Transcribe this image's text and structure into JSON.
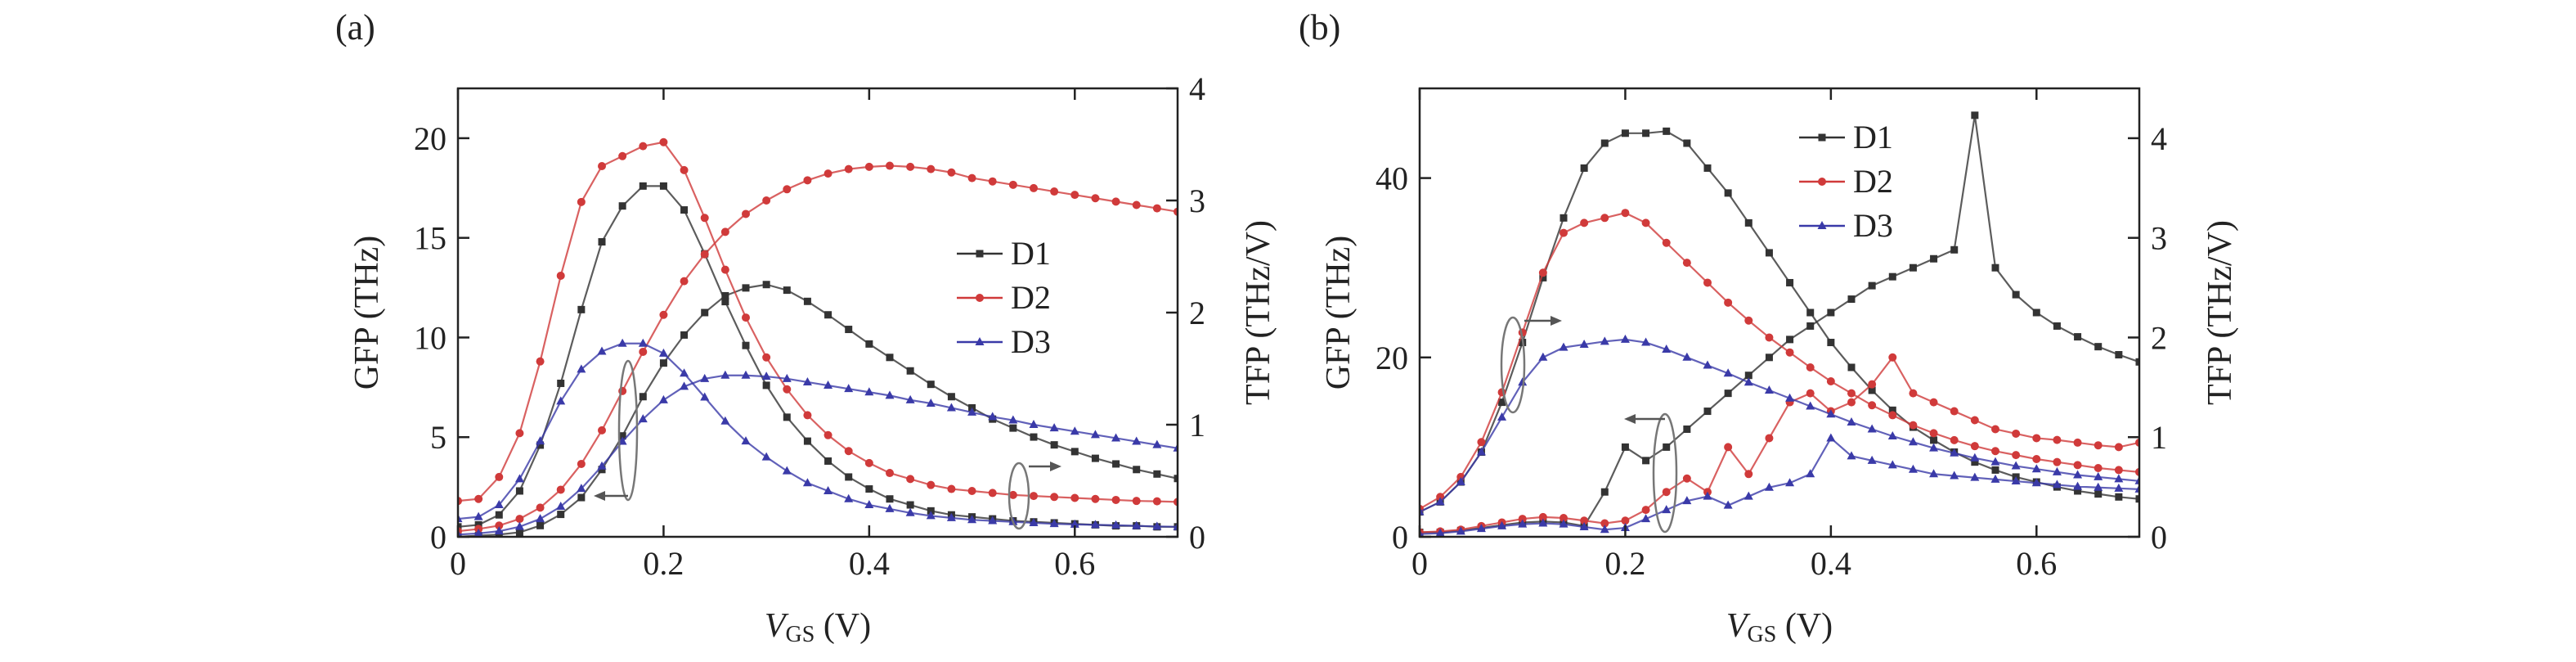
{
  "chart_data": [
    {
      "panel_label": "(a)",
      "type": "line",
      "xlabel": "V_GS (V)",
      "xlabel_main": "V",
      "xlabel_sub": "GS",
      "xlabel_unit": " (V)",
      "ylabel": "GFP (THz)",
      "y2label": "TFP (THz/V)",
      "xlim": [
        0,
        0.7
      ],
      "ylim": [
        0,
        22.5
      ],
      "y2lim": [
        0,
        4
      ],
      "xticks": [
        0,
        0.2,
        0.4,
        0.6
      ],
      "xtick_labels": [
        "0",
        "0.2",
        "0.4",
        "0.6"
      ],
      "yticks": [
        0,
        5,
        10,
        15,
        20
      ],
      "ytick_labels": [
        "0",
        "5",
        "10",
        "15",
        "20"
      ],
      "y2ticks": [
        0,
        1,
        2,
        3,
        4
      ],
      "y2tick_labels": [
        "0",
        "1",
        "2",
        "3",
        "4"
      ],
      "legend": {
        "entries": [
          "D1",
          "D2",
          "D3"
        ],
        "placement": "center-right"
      },
      "series": [
        {
          "name": "D1",
          "axis": "left",
          "color": "#333333",
          "marker": "square",
          "x": [
            0,
            0.02,
            0.04,
            0.06,
            0.08,
            0.1,
            0.12,
            0.14,
            0.16,
            0.18,
            0.2,
            0.22,
            0.24,
            0.26,
            0.28,
            0.3,
            0.32,
            0.34,
            0.36,
            0.38,
            0.4,
            0.42,
            0.44,
            0.46,
            0.48,
            0.5,
            0.52,
            0.54,
            0.56,
            0.58,
            0.6,
            0.62,
            0.64,
            0.66,
            0.68,
            0.7
          ],
          "y": [
            0.5,
            0.6,
            1.1,
            2.3,
            4.6,
            7.7,
            11.4,
            14.8,
            16.6,
            17.6,
            17.6,
            16.4,
            14.2,
            11.8,
            9.6,
            7.6,
            6.0,
            4.8,
            3.8,
            3.0,
            2.4,
            1.9,
            1.6,
            1.3,
            1.1,
            1.0,
            0.9,
            0.8,
            0.75,
            0.7,
            0.65,
            0.6,
            0.55,
            0.55,
            0.5,
            0.5
          ]
        },
        {
          "name": "D1",
          "axis": "right",
          "color": "#333333",
          "marker": "square",
          "x": [
            0,
            0.02,
            0.04,
            0.06,
            0.08,
            0.1,
            0.12,
            0.14,
            0.16,
            0.18,
            0.2,
            0.22,
            0.24,
            0.26,
            0.28,
            0.3,
            0.32,
            0.34,
            0.36,
            0.38,
            0.4,
            0.42,
            0.44,
            0.46,
            0.48,
            0.5,
            0.52,
            0.54,
            0.56,
            0.58,
            0.6,
            0.62,
            0.64,
            0.66,
            0.68,
            0.7
          ],
          "y": [
            0.0,
            0.01,
            0.02,
            0.04,
            0.1,
            0.2,
            0.35,
            0.6,
            0.9,
            1.25,
            1.55,
            1.8,
            2.0,
            2.15,
            2.22,
            2.25,
            2.2,
            2.1,
            1.98,
            1.85,
            1.72,
            1.6,
            1.48,
            1.36,
            1.25,
            1.15,
            1.05,
            0.97,
            0.89,
            0.82,
            0.76,
            0.7,
            0.65,
            0.6,
            0.56,
            0.52
          ]
        },
        {
          "name": "D2",
          "axis": "left",
          "color": "#d03a3a",
          "marker": "circle",
          "x": [
            0,
            0.02,
            0.04,
            0.06,
            0.08,
            0.1,
            0.12,
            0.14,
            0.16,
            0.18,
            0.2,
            0.22,
            0.24,
            0.26,
            0.28,
            0.3,
            0.32,
            0.34,
            0.36,
            0.38,
            0.4,
            0.42,
            0.44,
            0.46,
            0.48,
            0.5,
            0.52,
            0.54,
            0.56,
            0.58,
            0.6,
            0.62,
            0.64,
            0.66,
            0.68,
            0.7
          ],
          "y": [
            1.8,
            1.9,
            3.0,
            5.2,
            8.8,
            13.1,
            16.8,
            18.6,
            19.1,
            19.6,
            19.8,
            18.4,
            16.0,
            13.4,
            11.0,
            9.0,
            7.4,
            6.1,
            5.1,
            4.3,
            3.7,
            3.2,
            2.9,
            2.6,
            2.4,
            2.3,
            2.2,
            2.1,
            2.05,
            2.0,
            1.95,
            1.9,
            1.85,
            1.8,
            1.78,
            1.75
          ]
        },
        {
          "name": "D2",
          "axis": "right",
          "color": "#d03a3a",
          "marker": "circle",
          "x": [
            0,
            0.02,
            0.04,
            0.06,
            0.08,
            0.1,
            0.12,
            0.14,
            0.16,
            0.18,
            0.2,
            0.22,
            0.24,
            0.26,
            0.28,
            0.3,
            0.32,
            0.34,
            0.36,
            0.38,
            0.4,
            0.42,
            0.44,
            0.46,
            0.48,
            0.5,
            0.52,
            0.54,
            0.56,
            0.58,
            0.6,
            0.62,
            0.64,
            0.66,
            0.68,
            0.7
          ],
          "y": [
            0.05,
            0.07,
            0.1,
            0.16,
            0.26,
            0.42,
            0.65,
            0.95,
            1.3,
            1.65,
            1.98,
            2.28,
            2.52,
            2.72,
            2.88,
            3.0,
            3.1,
            3.18,
            3.24,
            3.28,
            3.3,
            3.31,
            3.3,
            3.28,
            3.25,
            3.2,
            3.17,
            3.14,
            3.11,
            3.08,
            3.05,
            3.02,
            2.99,
            2.96,
            2.93,
            2.9
          ]
        },
        {
          "name": "D3",
          "axis": "left",
          "color": "#3a3aa8",
          "marker": "triangle",
          "x": [
            0,
            0.02,
            0.04,
            0.06,
            0.08,
            0.1,
            0.12,
            0.14,
            0.16,
            0.18,
            0.2,
            0.22,
            0.24,
            0.26,
            0.28,
            0.3,
            0.32,
            0.34,
            0.36,
            0.38,
            0.4,
            0.42,
            0.44,
            0.46,
            0.48,
            0.5,
            0.52,
            0.54,
            0.56,
            0.58,
            0.6,
            0.62,
            0.64,
            0.66,
            0.68,
            0.7
          ],
          "y": [
            0.9,
            1.0,
            1.6,
            2.9,
            4.8,
            6.8,
            8.4,
            9.3,
            9.7,
            9.7,
            9.2,
            8.2,
            7.0,
            5.8,
            4.8,
            4.0,
            3.3,
            2.7,
            2.3,
            1.9,
            1.6,
            1.4,
            1.2,
            1.05,
            0.95,
            0.85,
            0.8,
            0.75,
            0.7,
            0.65,
            0.62,
            0.6,
            0.58,
            0.55,
            0.52,
            0.5
          ]
        },
        {
          "name": "D3",
          "axis": "right",
          "color": "#3a3aa8",
          "marker": "triangle",
          "x": [
            0,
            0.02,
            0.04,
            0.06,
            0.08,
            0.1,
            0.12,
            0.14,
            0.16,
            0.18,
            0.2,
            0.22,
            0.24,
            0.26,
            0.28,
            0.3,
            0.32,
            0.34,
            0.36,
            0.38,
            0.4,
            0.42,
            0.44,
            0.46,
            0.48,
            0.5,
            0.52,
            0.54,
            0.56,
            0.58,
            0.6,
            0.62,
            0.64,
            0.66,
            0.68,
            0.7
          ],
          "y": [
            0.02,
            0.03,
            0.05,
            0.09,
            0.16,
            0.27,
            0.43,
            0.63,
            0.85,
            1.05,
            1.22,
            1.34,
            1.41,
            1.44,
            1.44,
            1.43,
            1.41,
            1.38,
            1.35,
            1.32,
            1.29,
            1.26,
            1.22,
            1.19,
            1.15,
            1.11,
            1.07,
            1.04,
            1.0,
            0.97,
            0.94,
            0.91,
            0.88,
            0.85,
            0.82,
            0.79
          ]
        }
      ]
    },
    {
      "panel_label": "(b)",
      "type": "line",
      "xlabel": "V_GS (V)",
      "xlabel_main": "V",
      "xlabel_sub": "GS",
      "xlabel_unit": " (V)",
      "ylabel": "GFP (THz)",
      "y2label": "TFP (THz/V)",
      "xlim": [
        0,
        0.7
      ],
      "ylim": [
        0,
        50
      ],
      "y2lim": [
        0,
        4.5
      ],
      "xticks": [
        0,
        0.2,
        0.4,
        0.6
      ],
      "xtick_labels": [
        "0",
        "0.2",
        "0.4",
        "0.6"
      ],
      "yticks": [
        0,
        20,
        40
      ],
      "ytick_labels": [
        "0",
        "20",
        "40"
      ],
      "y2ticks": [
        0,
        1,
        2,
        3,
        4
      ],
      "y2tick_labels": [
        "0",
        "1",
        "2",
        "3",
        "4"
      ],
      "legend": {
        "entries": [
          "D1",
          "D2",
          "D3"
        ],
        "placement": "top-center"
      },
      "series": [
        {
          "name": "D1",
          "axis": "left",
          "color": "#333333",
          "marker": "square",
          "x": [
            0,
            0.02,
            0.04,
            0.06,
            0.08,
            0.1,
            0.12,
            0.14,
            0.16,
            0.18,
            0.2,
            0.22,
            0.24,
            0.26,
            0.28,
            0.3,
            0.32,
            0.34,
            0.36,
            0.38,
            0.4,
            0.42,
            0.44,
            0.46,
            0.48,
            0.5,
            0.52,
            0.54,
            0.56,
            0.58,
            0.6,
            0.62,
            0.64,
            0.66,
            0.68,
            0.7
          ],
          "y": [
            0.5,
            0.5,
            0.7,
            1.0,
            1.3,
            1.6,
            1.7,
            1.6,
            1.2,
            5.0,
            10.0,
            8.5,
            10.0,
            12.0,
            14.0,
            16.0,
            18.0,
            20.0,
            22.0,
            23.5,
            25.0,
            26.5,
            28.0,
            29.0,
            30.0,
            31.0,
            32.0,
            47.0,
            30.0,
            27.0,
            25.0,
            23.5,
            22.3,
            21.2,
            20.3,
            19.5
          ]
        },
        {
          "name": "D1",
          "axis": "right",
          "color": "#333333",
          "marker": "square",
          "x": [
            0,
            0.02,
            0.04,
            0.06,
            0.08,
            0.1,
            0.12,
            0.14,
            0.16,
            0.18,
            0.2,
            0.22,
            0.24,
            0.26,
            0.28,
            0.3,
            0.32,
            0.34,
            0.36,
            0.38,
            0.4,
            0.42,
            0.44,
            0.46,
            0.48,
            0.5,
            0.52,
            0.54,
            0.56,
            0.58,
            0.6,
            0.62,
            0.64,
            0.66,
            0.68,
            0.7
          ],
          "y": [
            0.25,
            0.35,
            0.55,
            0.85,
            1.35,
            1.95,
            2.6,
            3.2,
            3.7,
            3.95,
            4.05,
            4.05,
            4.07,
            3.95,
            3.7,
            3.45,
            3.15,
            2.85,
            2.55,
            2.25,
            1.95,
            1.7,
            1.47,
            1.27,
            1.1,
            0.97,
            0.85,
            0.75,
            0.67,
            0.6,
            0.55,
            0.5,
            0.46,
            0.43,
            0.4,
            0.38
          ]
        },
        {
          "name": "D2",
          "axis": "left",
          "color": "#d03a3a",
          "marker": "circle",
          "x": [
            0,
            0.02,
            0.04,
            0.06,
            0.08,
            0.1,
            0.12,
            0.14,
            0.16,
            0.18,
            0.2,
            0.22,
            0.24,
            0.26,
            0.28,
            0.3,
            0.32,
            0.34,
            0.36,
            0.38,
            0.4,
            0.42,
            0.44,
            0.46,
            0.48,
            0.5,
            0.52,
            0.54,
            0.56,
            0.58,
            0.6,
            0.62,
            0.64,
            0.66,
            0.68,
            0.7
          ],
          "y": [
            0.5,
            0.6,
            0.8,
            1.2,
            1.6,
            2.0,
            2.2,
            2.1,
            1.8,
            1.5,
            1.8,
            3.0,
            5.0,
            6.5,
            5.0,
            10.0,
            7.0,
            11.0,
            15.0,
            16.0,
            14.0,
            15.0,
            17.0,
            20.0,
            16.0,
            15.0,
            14.0,
            13.0,
            12.0,
            11.5,
            11.0,
            10.8,
            10.5,
            10.2,
            10.0,
            10.5
          ]
        },
        {
          "name": "D2",
          "axis": "right",
          "color": "#d03a3a",
          "marker": "circle",
          "x": [
            0,
            0.02,
            0.04,
            0.06,
            0.08,
            0.1,
            0.12,
            0.14,
            0.16,
            0.18,
            0.2,
            0.22,
            0.24,
            0.26,
            0.28,
            0.3,
            0.32,
            0.34,
            0.36,
            0.38,
            0.4,
            0.42,
            0.44,
            0.46,
            0.48,
            0.5,
            0.52,
            0.54,
            0.56,
            0.58,
            0.6,
            0.62,
            0.64,
            0.66,
            0.68,
            0.7
          ],
          "y": [
            0.28,
            0.4,
            0.6,
            0.95,
            1.45,
            2.05,
            2.65,
            3.05,
            3.15,
            3.2,
            3.25,
            3.15,
            2.95,
            2.75,
            2.55,
            2.35,
            2.17,
            2.0,
            1.85,
            1.7,
            1.56,
            1.44,
            1.32,
            1.22,
            1.12,
            1.04,
            0.97,
            0.91,
            0.86,
            0.82,
            0.78,
            0.75,
            0.72,
            0.69,
            0.67,
            0.65
          ]
        },
        {
          "name": "D3",
          "axis": "left",
          "color": "#3a3aa8",
          "marker": "triangle",
          "x": [
            0,
            0.02,
            0.04,
            0.06,
            0.08,
            0.1,
            0.12,
            0.14,
            0.16,
            0.18,
            0.2,
            0.22,
            0.24,
            0.26,
            0.28,
            0.3,
            0.32,
            0.34,
            0.36,
            0.38,
            0.4,
            0.42,
            0.44,
            0.46,
            0.48,
            0.5,
            0.52,
            0.54,
            0.56,
            0.58,
            0.6,
            0.62,
            0.64,
            0.66,
            0.68,
            0.7
          ],
          "y": [
            0.3,
            0.4,
            0.6,
            0.9,
            1.2,
            1.4,
            1.5,
            1.4,
            1.1,
            0.8,
            1.0,
            2.0,
            3.0,
            4.0,
            4.5,
            3.5,
            4.5,
            5.5,
            6.0,
            7.0,
            11.0,
            9.0,
            8.5,
            8.0,
            7.5,
            7.0,
            6.8,
            6.6,
            6.4,
            6.2,
            6.0,
            5.8,
            5.6,
            5.5,
            5.4,
            5.3
          ]
        },
        {
          "name": "D3",
          "axis": "right",
          "color": "#3a3aa8",
          "marker": "triangle",
          "x": [
            0,
            0.02,
            0.04,
            0.06,
            0.08,
            0.1,
            0.12,
            0.14,
            0.16,
            0.18,
            0.2,
            0.22,
            0.24,
            0.26,
            0.28,
            0.3,
            0.32,
            0.34,
            0.36,
            0.38,
            0.4,
            0.42,
            0.44,
            0.46,
            0.48,
            0.5,
            0.52,
            0.54,
            0.56,
            0.58,
            0.6,
            0.62,
            0.64,
            0.66,
            0.68,
            0.7
          ],
          "y": [
            0.25,
            0.35,
            0.55,
            0.85,
            1.2,
            1.55,
            1.8,
            1.9,
            1.93,
            1.96,
            1.98,
            1.95,
            1.88,
            1.8,
            1.72,
            1.64,
            1.55,
            1.47,
            1.39,
            1.31,
            1.23,
            1.15,
            1.08,
            1.01,
            0.95,
            0.89,
            0.84,
            0.79,
            0.75,
            0.71,
            0.68,
            0.65,
            0.62,
            0.6,
            0.58,
            0.56
          ]
        }
      ]
    }
  ]
}
